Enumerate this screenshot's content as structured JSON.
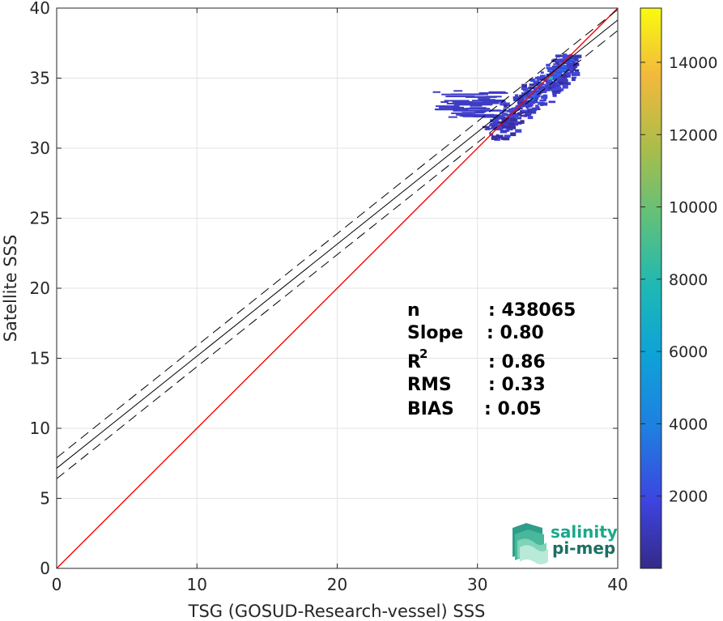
{
  "chart_data": {
    "type": "heatmap",
    "xlabel": "TSG (GOSUD-Research-vessel) SSS",
    "ylabel": "Satellite SSS",
    "xlim": [
      0,
      40
    ],
    "ylim": [
      0,
      40
    ],
    "x_ticks": [
      0,
      10,
      20,
      30,
      40
    ],
    "y_ticks": [
      0,
      5,
      10,
      15,
      20,
      25,
      30,
      35,
      40
    ],
    "grid": true,
    "colorbar": {
      "range": [
        0,
        15500
      ],
      "ticks": [
        2000,
        4000,
        6000,
        8000,
        10000,
        12000,
        14000
      ],
      "colormap": "parula"
    },
    "lines": [
      {
        "kind": "identity",
        "color": "#ff0000",
        "slope": 1.0,
        "intercept": 0
      },
      {
        "kind": "regression",
        "color": "#000000",
        "style": "solid",
        "slope": 0.8,
        "intercept": 7.15
      },
      {
        "kind": "regression-upper",
        "color": "#000000",
        "style": "dashed",
        "slope": 0.8,
        "intercept": 7.9
      },
      {
        "kind": "regression-lower",
        "color": "#000000",
        "style": "dashed",
        "slope": 0.8,
        "intercept": 6.4
      }
    ],
    "density_region": {
      "x_range": [
        26.5,
        37.0
      ],
      "y_range": [
        30.5,
        36.8
      ],
      "peak": [
        35.2,
        35.0
      ]
    },
    "stats": [
      {
        "label": "n",
        "value": ": 438065"
      },
      {
        "label": "Slope",
        "value": ": 0.80"
      },
      {
        "label": "R",
        "sup": "2",
        "value": ": 0.86"
      },
      {
        "label": "RMS",
        "value": ": 0.33"
      },
      {
        "label": "BIAS",
        "value": ": 0.05"
      }
    ]
  },
  "logo": {
    "line1": "salinity",
    "line2": "pi-mep"
  }
}
